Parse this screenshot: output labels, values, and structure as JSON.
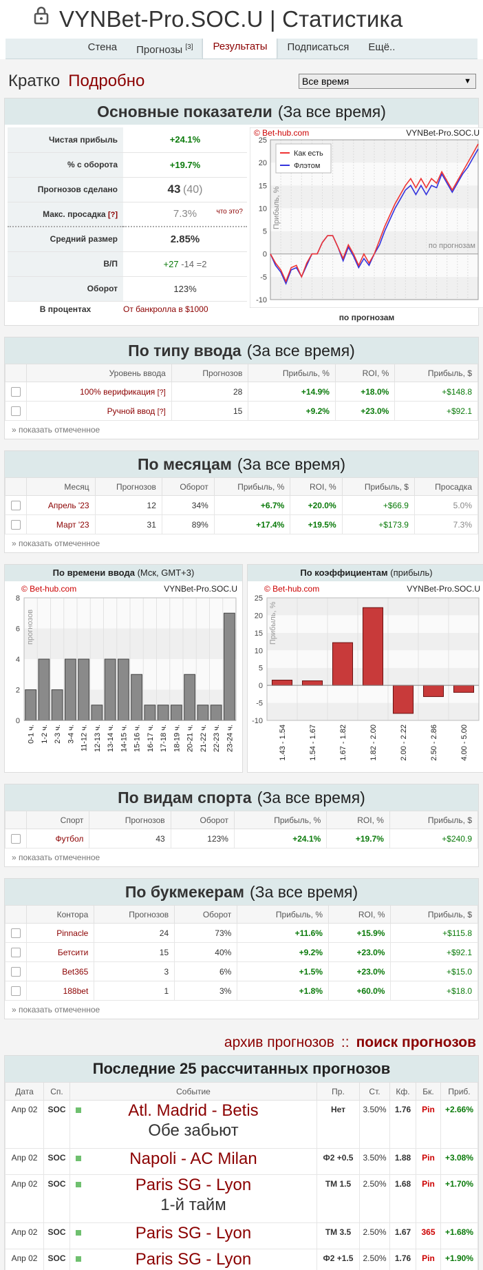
{
  "header": {
    "title": "VYNBet-Pro.SOC.U | Статистика"
  },
  "nav": {
    "items": [
      {
        "label": "Стена",
        "sup": ""
      },
      {
        "label": "Прогнозы",
        "sup": "[3]"
      },
      {
        "label": "Результаты",
        "sup": ""
      },
      {
        "label": "Подписаться",
        "sup": ""
      },
      {
        "label": "Ещё..",
        "sup": ""
      }
    ]
  },
  "topline": {
    "short": "Кратко",
    "detailed": "Подробно",
    "period_select": "Все время"
  },
  "main_stats": {
    "title": "Основные показатели",
    "period": "(За все время)",
    "rows": [
      {
        "label": "Чистая прибыль",
        "value": "+24.1%"
      },
      {
        "label": "% с оборота",
        "value": "+19.7%"
      },
      {
        "label": "Прогнозов сделано",
        "value": "43",
        "extra": "(40)"
      },
      {
        "label": "Макс. просадка",
        "q": "[?]",
        "value": "7.3%",
        "hint": "что это?"
      },
      {
        "label": "Средний размер",
        "value": "2.85%"
      },
      {
        "label": "В/П",
        "wins": "+27",
        "losses": "-14",
        "pushes": "=2"
      },
      {
        "label": "Оборот",
        "value": "123%"
      }
    ],
    "footer_left": "В процентах",
    "footer_right": "От банкролла в $1000",
    "chart_caption": "по прогнозам"
  },
  "chart_data": [
    {
      "type": "line",
      "watermark": "© Bet-hub.com",
      "corner_title": "VYNBet-Pro.SOC.U",
      "ylabel": "Прибыль, %",
      "inner_label": "по прогнозам",
      "ylim": [
        -10,
        25
      ],
      "yticks": [
        -10,
        -5,
        0,
        5,
        10,
        15,
        20,
        25
      ],
      "series": [
        {
          "name": "Как есть",
          "color": "#ee3333",
          "values": [
            0,
            -2,
            -3.5,
            -6,
            -3,
            -2.5,
            -5,
            -2,
            0,
            0,
            2.5,
            4,
            4,
            1.5,
            -1,
            2,
            0,
            -2.5,
            0,
            -2,
            0,
            3,
            6,
            8.5,
            11,
            13,
            15,
            16.5,
            14.5,
            16.5,
            14.5,
            16.5,
            15.5,
            18,
            16,
            14,
            16,
            18,
            20,
            22,
            24.1
          ]
        },
        {
          "name": "Флэтом",
          "color": "#3333dd",
          "values": [
            0,
            -2.5,
            -4,
            -6.5,
            -3.5,
            -3,
            -5,
            -2.5,
            0,
            0,
            2.5,
            4,
            4,
            1.5,
            -1.5,
            1.5,
            -0.5,
            -3,
            -1,
            -2.5,
            0,
            2,
            5,
            7.5,
            10,
            12,
            14,
            15,
            13,
            15,
            13,
            15,
            14.5,
            17.5,
            15.5,
            13.5,
            15.5,
            17.5,
            19,
            21,
            23
          ]
        }
      ]
    },
    {
      "type": "bar",
      "watermark": "© Bet-hub.com",
      "corner_title": "VYNBet-Pro.SOC.U",
      "ylabel": "прогнозов",
      "ylim": [
        0,
        8
      ],
      "yticks": [
        0,
        2,
        4,
        6,
        8
      ],
      "categories": [
        "0-1 ч.",
        "1-2 ч.",
        "2-3 ч.",
        "3-4 ч.",
        "11-12 ч.",
        "12-13 ч.",
        "13-14 ч.",
        "14-15 ч.",
        "15-16 ч.",
        "16-17 ч.",
        "17-18 ч.",
        "18-19 ч.",
        "20-21 ч.",
        "21-22 ч.",
        "22-23 ч.",
        "23-24 ч."
      ],
      "values": [
        2,
        4,
        2,
        4,
        4,
        1,
        4,
        4,
        3,
        1,
        1,
        1,
        3,
        1,
        1,
        7
      ]
    },
    {
      "type": "bar",
      "watermark": "© Bet-hub.com",
      "corner_title": "VYNBet-Pro.SOC.U",
      "ylabel": "Прибыль, %",
      "ylim": [
        -10,
        25
      ],
      "yticks": [
        -10,
        -5,
        0,
        5,
        10,
        15,
        20,
        25
      ],
      "categories": [
        "1.43 - 1.54",
        "1.54 - 1.67",
        "1.67 - 1.82",
        "1.82 - 2.00",
        "2.00 - 2.22",
        "2.50 - 2.86",
        "4.00 - 5.00"
      ],
      "values": [
        1.5,
        1.3,
        12.2,
        22.2,
        -8,
        -3.2,
        -2
      ]
    }
  ],
  "by_entry": {
    "title": "По типу ввода",
    "period": "(За все время)",
    "headers": [
      "Уровень ввода",
      "Прогнозов",
      "Прибыль, %",
      "ROI, %",
      "Прибыль, $"
    ],
    "rows": [
      {
        "name": "100% верификация",
        "q": "[?]",
        "count": "28",
        "profit_pct": "+14.9%",
        "roi": "+18.0%",
        "profit_usd": "+$148.8"
      },
      {
        "name": "Ручной ввод",
        "q": "[?]",
        "count": "15",
        "profit_pct": "+9.2%",
        "roi": "+23.0%",
        "profit_usd": "+$92.1"
      }
    ],
    "show_marked": "» показать отмеченное"
  },
  "by_month": {
    "title": "По месяцам",
    "period": "(За все время)",
    "headers": [
      "Месяц",
      "Прогнозов",
      "Оборот",
      "Прибыль, %",
      "ROI, %",
      "Прибыль, $",
      "Просадка"
    ],
    "rows": [
      {
        "name": "Апрель '23",
        "count": "12",
        "turnover": "34%",
        "profit_pct": "+6.7%",
        "roi": "+20.0%",
        "profit_usd": "+$66.9",
        "dd": "5.0%"
      },
      {
        "name": "Март '23",
        "count": "31",
        "turnover": "89%",
        "profit_pct": "+17.4%",
        "roi": "+19.5%",
        "profit_usd": "+$173.9",
        "dd": "7.3%"
      }
    ],
    "show_marked": "» показать отмеченное"
  },
  "twin": {
    "left_title_bold": "По времени ввода",
    "left_title_rest": "(Мск, GMT+3)",
    "right_title_bold": "По коэффициентам",
    "right_title_rest": "(прибыль)"
  },
  "by_sport": {
    "title": "По видам спорта",
    "period": "(За все время)",
    "headers": [
      "Спорт",
      "Прогнозов",
      "Оборот",
      "Прибыль, %",
      "ROI, %",
      "Прибыль, $"
    ],
    "rows": [
      {
        "name": "Футбол",
        "count": "43",
        "turnover": "123%",
        "profit_pct": "+24.1%",
        "roi": "+19.7%",
        "profit_usd": "+$240.9"
      }
    ],
    "show_marked": "» показать отмеченное"
  },
  "by_book": {
    "title": "По букмекерам",
    "period": "(За все время)",
    "headers": [
      "Контора",
      "Прогнозов",
      "Оборот",
      "Прибыль, %",
      "ROI, %",
      "Прибыль, $"
    ],
    "rows": [
      {
        "name": "Pinnacle",
        "count": "24",
        "turnover": "73%",
        "profit_pct": "+11.6%",
        "roi": "+15.9%",
        "profit_usd": "+$115.8"
      },
      {
        "name": "Бетсити",
        "count": "15",
        "turnover": "40%",
        "profit_pct": "+9.2%",
        "roi": "+23.0%",
        "profit_usd": "+$92.1"
      },
      {
        "name": "Bet365",
        "count": "3",
        "turnover": "6%",
        "profit_pct": "+1.5%",
        "roi": "+23.0%",
        "profit_usd": "+$15.0"
      },
      {
        "name": "188bet",
        "count": "1",
        "turnover": "3%",
        "profit_pct": "+1.8%",
        "roi": "+60.0%",
        "profit_usd": "+$18.0"
      }
    ],
    "show_marked": "» показать отмеченное"
  },
  "archive": {
    "archive_link": "архив прогнозов",
    "sep": "::",
    "search_link": "поиск прогнозов"
  },
  "last25": {
    "title": "Последние 25 рассчитанных прогнозов",
    "headers": [
      "Дата",
      "Сп.",
      "Событие",
      "Пр.",
      "Ст.",
      "Кф.",
      "Бк.",
      "Приб."
    ],
    "rows": [
      {
        "date": "Апр 02",
        "sport": "SOC",
        "event": "Atl. Madrid - Betis",
        "sub": "Обе забьют",
        "pick": "Нет",
        "stake": "3.50%",
        "odds": "1.76",
        "book": "Pin",
        "profit": "+2.66%"
      },
      {
        "date": "Апр 02",
        "sport": "SOC",
        "event": "Napoli - AC Milan",
        "sub": "",
        "pick": "Ф2 +0.5",
        "stake": "3.50%",
        "odds": "1.88",
        "book": "Pin",
        "profit": "+3.08%"
      },
      {
        "date": "Апр 02",
        "sport": "SOC",
        "event": "Paris SG - Lyon",
        "sub": "1-й тайм",
        "pick": "ТМ 1.5",
        "stake": "2.50%",
        "odds": "1.68",
        "book": "Pin",
        "profit": "+1.70%"
      },
      {
        "date": "Апр 02",
        "sport": "SOC",
        "event": "Paris SG - Lyon",
        "sub": "",
        "pick": "ТМ 3.5",
        "stake": "2.50%",
        "odds": "1.67",
        "book": "365",
        "profit": "+1.68%"
      },
      {
        "date": "Апр 02",
        "sport": "SOC",
        "event": "Paris SG - Lyon",
        "sub": "",
        "pick": "Ф2 +1.5",
        "stake": "2.50%",
        "odds": "1.76",
        "book": "Pin",
        "profit": "+1.90%"
      }
    ]
  }
}
